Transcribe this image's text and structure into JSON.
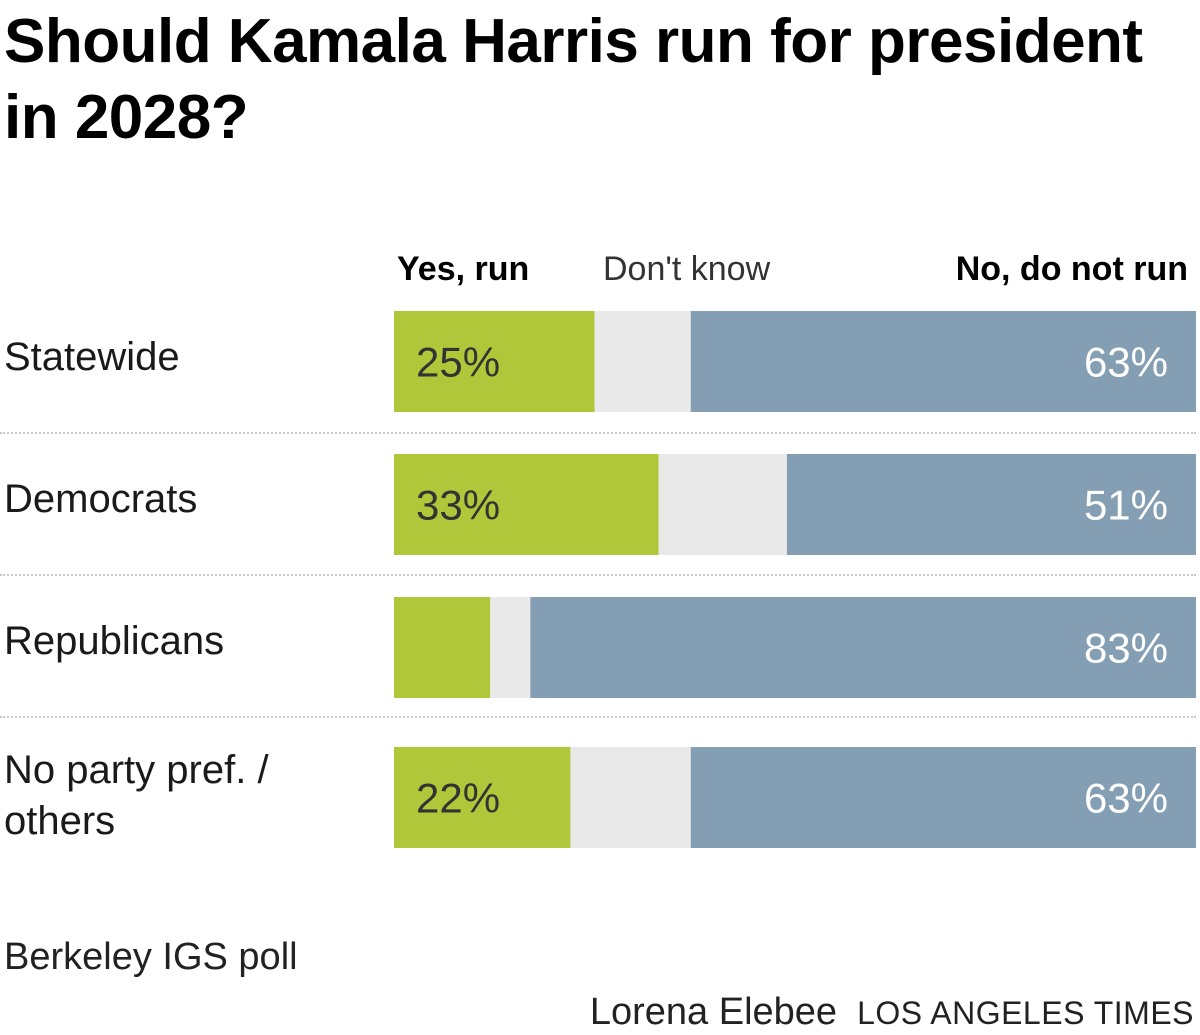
{
  "chart_data": {
    "type": "bar",
    "title": "Should Kamala Harris run for president in 2028?",
    "categories": [
      "Statewide",
      "Democrats",
      "Republicans",
      "No party pref. / others"
    ],
    "series": [
      {
        "name": "Yes, run",
        "values": [
          25,
          33,
          12,
          22
        ],
        "color": "#b1c73a",
        "label_color": "#333333"
      },
      {
        "name": "Don't know",
        "values": [
          12,
          16,
          5,
          15
        ],
        "color": "#e9e9e9",
        "label_color": "#333333"
      },
      {
        "name": "No, do not run",
        "values": [
          63,
          51,
          83,
          63
        ],
        "color": "#849fb3",
        "label_color": "#ffffff"
      }
    ],
    "data_labels": [
      [
        "25%",
        null,
        "63%"
      ],
      [
        "33%",
        null,
        "51%"
      ],
      [
        null,
        null,
        "83%"
      ],
      [
        "22%",
        null,
        "63%"
      ]
    ],
    "stacked": true,
    "orientation": "horizontal",
    "xlim": [
      0,
      100
    ],
    "legend_position": "top"
  },
  "labels": {
    "row_1": "Statewide",
    "row_2": "Democrats",
    "row_3": "Republicans",
    "row_4a": "No party pref. /",
    "row_4b": "others"
  },
  "credits": {
    "source": "Berkeley IGS poll",
    "author": "Lorena Elebee",
    "outlet": "LOS ANGELES TIMES"
  }
}
